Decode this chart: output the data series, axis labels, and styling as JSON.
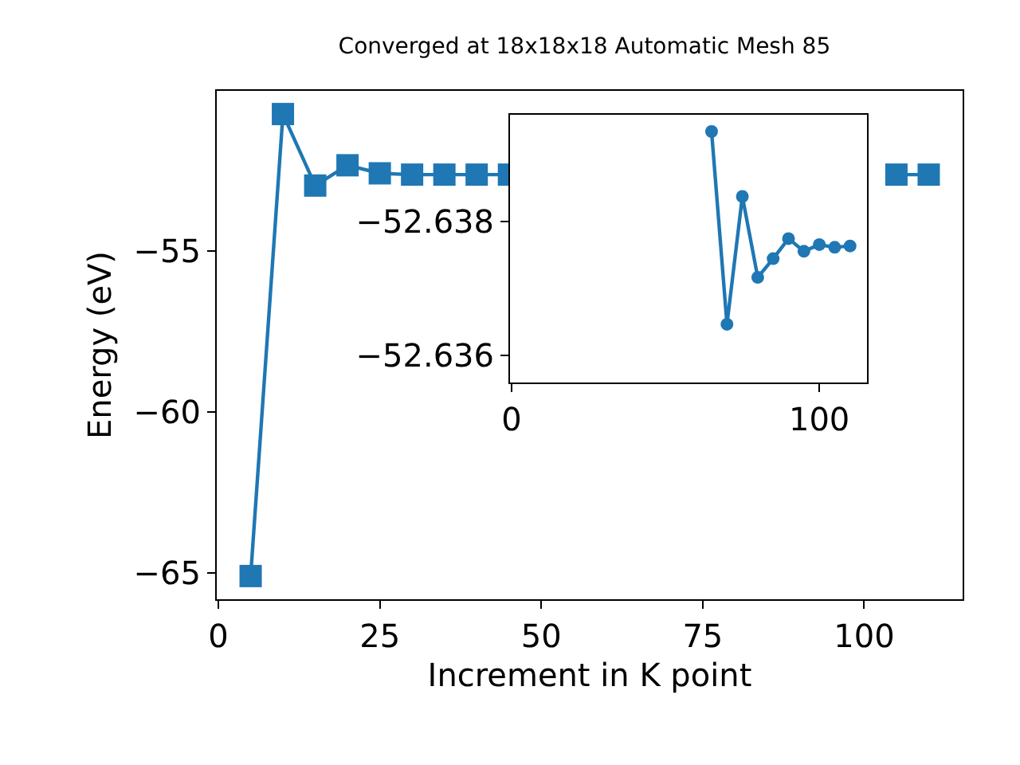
{
  "chart_data": [
    {
      "type": "line",
      "title": "Converged at 18x18x18 Automatic Mesh 85",
      "xlabel": "Increment in K point",
      "ylabel": "Energy (eV)",
      "x": [
        5,
        10,
        15,
        20,
        25,
        30,
        35,
        40,
        45,
        50,
        55,
        60,
        65,
        70,
        75,
        80,
        85,
        90,
        95,
        100,
        105,
        110
      ],
      "series": [
        {
          "color": "#1f77b4",
          "values": [
            -65.1,
            -50.76,
            -52.98,
            -52.35,
            -52.6,
            -52.64,
            -52.64,
            -52.64,
            -52.64,
            null,
            null,
            null,
            null,
            null,
            null,
            null,
            null,
            null,
            null,
            null,
            -52.64,
            -52.64
          ]
        }
      ],
      "xlim": [
        -0.25,
        115.25
      ],
      "xticks": [
        0,
        25,
        50,
        75,
        100
      ],
      "ylim": [
        -65.82,
        -50.04
      ],
      "yticks": [
        -55,
        -60,
        -65
      ],
      "grid": false,
      "marker": "square",
      "line_style": "solid"
    },
    {
      "type": "line",
      "x": [
        65,
        70,
        75,
        80,
        85,
        90,
        95,
        100,
        105,
        110
      ],
      "series": [
        {
          "color": "#1f77b4",
          "values": [
            -52.63935,
            -52.63647,
            -52.63838,
            -52.63717,
            -52.63745,
            -52.63775,
            -52.63756,
            -52.63766,
            -52.63762,
            -52.63764
          ]
        }
      ],
      "xlim": [
        -0.5,
        115.5
      ],
      "xticks": [
        0,
        100
      ],
      "ylim": [
        -52.6356,
        -52.6396
      ],
      "yticks": [
        -52.638,
        -52.636
      ],
      "grid": false,
      "marker": "circle",
      "line_style": "solid"
    }
  ]
}
